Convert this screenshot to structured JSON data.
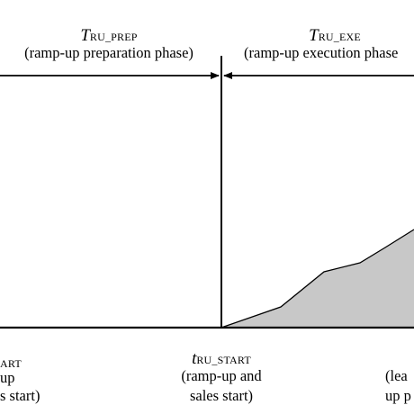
{
  "phases": {
    "prep": {
      "symbol": "T",
      "subscript": "RU_PREP",
      "description": "(ramp-up preparation phase)"
    },
    "exe": {
      "symbol": "T",
      "subscript": "RU_EXE",
      "description": "(ramp-up execution phase"
    }
  },
  "time_points": {
    "left": {
      "subscript_fragment": "ART",
      "line1": "up",
      "line2": "s start)"
    },
    "center": {
      "symbol": "t",
      "subscript": "RU_START",
      "line1": "(ramp-up and",
      "line2": "sales start)"
    },
    "right": {
      "line1": "(lea",
      "line2": "up p"
    }
  },
  "ramp_curve": {
    "fill_color": "#c8c8c8",
    "stroke_color": "#000000"
  },
  "colors": {
    "line": "#000000",
    "background": "#ffffff"
  }
}
